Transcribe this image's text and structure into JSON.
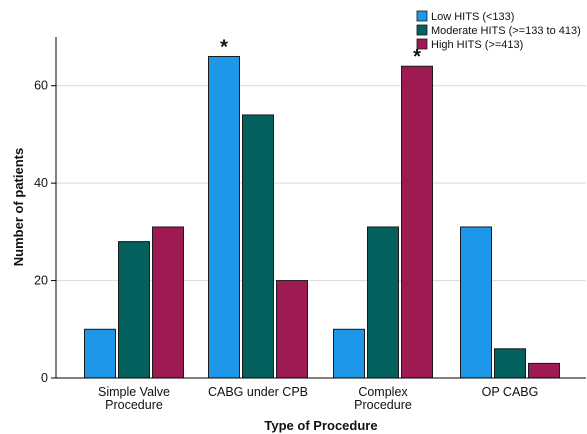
{
  "chart_data": {
    "type": "bar",
    "title": "",
    "xlabel": "Type of Procedure",
    "ylabel": "Number of patients",
    "categories": [
      [
        "Simple Valve",
        "Procedure"
      ],
      [
        "CABG under CPB"
      ],
      [
        "Complex",
        "Procedure"
      ],
      [
        "OP CABG"
      ]
    ],
    "series": [
      {
        "name": "Low HITS (<133)",
        "color": "#1f97e8",
        "values": [
          10,
          66,
          10,
          31
        ]
      },
      {
        "name": "Moderate HITS (>=133 to 413)",
        "color": "#04615d",
        "values": [
          28,
          54,
          31,
          6
        ]
      },
      {
        "name": "High HITS (>=413)",
        "color": "#9d1a53",
        "values": [
          31,
          20,
          64,
          3
        ]
      }
    ],
    "ylim": [
      0,
      70
    ],
    "yticks": [
      0,
      20,
      40,
      60
    ],
    "grid": true,
    "legend_position": "top-right",
    "annotations": [
      {
        "text": "*",
        "category_index": 1,
        "series_index": 0
      },
      {
        "text": "*",
        "category_index": 2,
        "series_index": 2
      }
    ]
  }
}
